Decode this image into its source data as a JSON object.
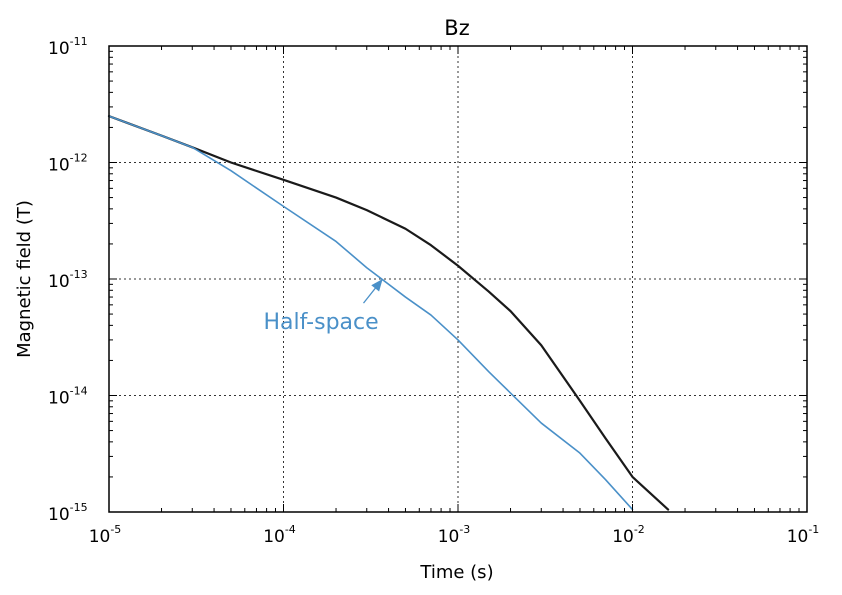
{
  "chart_data": {
    "type": "line",
    "title": "Bz",
    "xlabel": "Time (s)",
    "ylabel": "Magnetic field (T)",
    "xscale": "log",
    "yscale": "log",
    "xlim": [
      1e-05,
      0.1
    ],
    "ylim": [
      1e-15,
      1e-11
    ],
    "grid": true,
    "x_ticks": [
      {
        "base": "10",
        "exp": "-5",
        "value": 1e-05
      },
      {
        "base": "10",
        "exp": "-4",
        "value": 0.0001
      },
      {
        "base": "10",
        "exp": "-3",
        "value": 0.001
      },
      {
        "base": "10",
        "exp": "-2",
        "value": 0.01
      },
      {
        "base": "10",
        "exp": "-1",
        "value": 0.1
      }
    ],
    "y_ticks": [
      {
        "base": "10",
        "exp": "-15",
        "value": 1e-15
      },
      {
        "base": "10",
        "exp": "-14",
        "value": 1e-14
      },
      {
        "base": "10",
        "exp": "-13",
        "value": 1e-13
      },
      {
        "base": "10",
        "exp": "-12",
        "value": 1e-12
      },
      {
        "base": "10",
        "exp": "-11",
        "value": 1e-11
      }
    ],
    "series": [
      {
        "color": "#1a1a1a",
        "points": [
          [
            1e-05,
            2.5e-12
          ],
          [
            2e-05,
            1.7e-12
          ],
          [
            3e-05,
            1.35e-12
          ],
          [
            5e-05,
            1e-12
          ],
          [
            0.0001,
            7.1e-13
          ],
          [
            0.0002,
            5e-13
          ],
          [
            0.0003,
            3.9e-13
          ],
          [
            0.0005,
            2.7e-13
          ],
          [
            0.0007,
            1.95e-13
          ],
          [
            0.001,
            1.3e-13
          ],
          [
            0.0015,
            7.8e-14
          ],
          [
            0.002,
            5.3e-14
          ],
          [
            0.003,
            2.7e-14
          ],
          [
            0.005,
            9e-15
          ],
          [
            0.007,
            4.3e-15
          ],
          [
            0.01,
            2e-15
          ],
          [
            0.016,
            1.05e-15
          ]
        ]
      },
      {
        "name": "Half-space",
        "color": "#4a90c8",
        "points": [
          [
            1e-05,
            2.5e-12
          ],
          [
            2e-05,
            1.7e-12
          ],
          [
            3e-05,
            1.35e-12
          ],
          [
            5e-05,
            8.5e-13
          ],
          [
            0.0001,
            4.2e-13
          ],
          [
            0.0002,
            2.1e-13
          ],
          [
            0.0003,
            1.25e-13
          ],
          [
            0.0005,
            7e-14
          ],
          [
            0.0007,
            4.9e-14
          ],
          [
            0.001,
            3e-14
          ],
          [
            0.0015,
            1.6e-14
          ],
          [
            0.002,
            1.05e-14
          ],
          [
            0.003,
            5.8e-15
          ],
          [
            0.005,
            3.2e-15
          ],
          [
            0.007,
            1.9e-15
          ],
          [
            0.01,
            1.05e-15
          ]
        ]
      }
    ],
    "annotations": [
      {
        "text": "Half-space",
        "series": 1,
        "arrow_to": [
          0.00037,
          1e-13
        ],
        "text_anchor": [
          0.0001,
          4.1e-14
        ]
      }
    ]
  }
}
